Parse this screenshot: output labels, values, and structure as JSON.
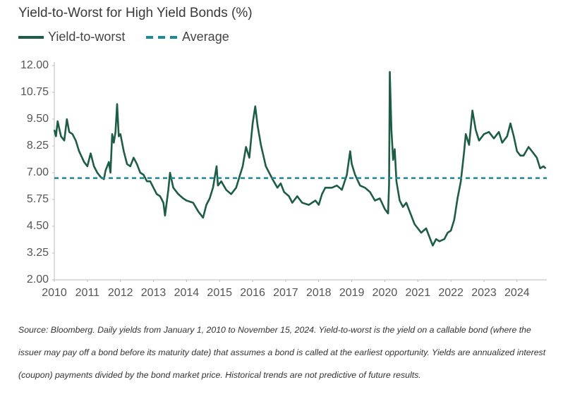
{
  "chart_data": {
    "type": "line",
    "title": "Yield-to-Worst for High Yield Bonds (%)",
    "x": [
      2010.0,
      2010.05,
      2010.1,
      2010.2,
      2010.3,
      2010.38,
      2010.45,
      2010.55,
      2010.65,
      2010.75,
      2010.9,
      2011.0,
      2011.1,
      2011.2,
      2011.3,
      2011.4,
      2011.5,
      2011.55,
      2011.65,
      2011.7,
      2011.75,
      2011.8,
      2011.85,
      2011.9,
      2011.95,
      2012.0,
      2012.1,
      2012.2,
      2012.3,
      2012.4,
      2012.5,
      2012.6,
      2012.7,
      2012.8,
      2012.9,
      2013.0,
      2013.1,
      2013.2,
      2013.3,
      2013.35,
      2013.45,
      2013.5,
      2013.6,
      2013.75,
      2013.9,
      2014.0,
      2014.2,
      2014.35,
      2014.45,
      2014.5,
      2014.6,
      2014.7,
      2014.8,
      2014.91,
      2014.95,
      2015.05,
      2015.2,
      2015.35,
      2015.5,
      2015.6,
      2015.7,
      2015.8,
      2015.9,
      2016.0,
      2016.08,
      2016.15,
      2016.25,
      2016.4,
      2016.5,
      2016.6,
      2016.75,
      2016.85,
      2016.95,
      2017.1,
      2017.2,
      2017.35,
      2017.5,
      2017.7,
      2017.9,
      2018.0,
      2018.1,
      2018.2,
      2018.4,
      2018.55,
      2018.7,
      2018.85,
      2018.95,
      2019.0,
      2019.1,
      2019.25,
      2019.4,
      2019.55,
      2019.7,
      2019.85,
      2020.0,
      2020.1,
      2020.13,
      2020.15,
      2020.2,
      2020.25,
      2020.3,
      2020.35,
      2020.45,
      2020.55,
      2020.65,
      2020.8,
      2020.9,
      2021.0,
      2021.1,
      2021.25,
      2021.35,
      2021.45,
      2021.55,
      2021.65,
      2021.8,
      2021.9,
      2022.0,
      2022.1,
      2022.2,
      2022.3,
      2022.4,
      2022.45,
      2022.55,
      2022.65,
      2022.75,
      2022.85,
      2023.0,
      2023.15,
      2023.3,
      2023.45,
      2023.55,
      2023.7,
      2023.8,
      2023.9,
      2024.0,
      2024.1,
      2024.2,
      2024.35,
      2024.5,
      2024.6,
      2024.7,
      2024.8,
      2024.87
    ],
    "series": [
      {
        "name": "Yield-to-worst",
        "color": "#1d5c45",
        "values": [
          9.0,
          8.7,
          9.4,
          8.7,
          8.5,
          9.5,
          8.9,
          8.8,
          8.5,
          8.0,
          7.5,
          7.3,
          7.9,
          7.3,
          7.0,
          6.8,
          6.7,
          7.1,
          7.5,
          7.0,
          8.8,
          8.4,
          8.9,
          10.2,
          8.7,
          8.8,
          8.0,
          7.4,
          7.3,
          7.7,
          7.4,
          7.0,
          6.9,
          6.6,
          6.6,
          6.3,
          6.0,
          5.9,
          5.6,
          5.0,
          6.2,
          7.0,
          6.3,
          6.0,
          5.8,
          5.7,
          5.6,
          5.2,
          5.0,
          4.9,
          5.5,
          5.8,
          6.3,
          7.3,
          6.4,
          6.6,
          6.2,
          6.0,
          6.3,
          6.8,
          7.3,
          8.2,
          7.7,
          9.3,
          10.1,
          9.2,
          8.3,
          7.3,
          7.0,
          6.7,
          6.3,
          6.5,
          6.1,
          5.9,
          5.6,
          5.9,
          5.6,
          5.5,
          5.7,
          5.5,
          6.0,
          6.3,
          6.3,
          6.4,
          6.2,
          6.9,
          8.0,
          7.4,
          6.9,
          6.4,
          6.3,
          6.1,
          5.7,
          5.8,
          5.3,
          5.1,
          6.5,
          11.7,
          9.0,
          7.6,
          8.1,
          6.6,
          5.7,
          5.4,
          5.6,
          5.0,
          4.6,
          4.4,
          4.2,
          4.4,
          4.0,
          3.6,
          3.9,
          3.8,
          3.9,
          4.2,
          4.3,
          4.8,
          5.8,
          6.6,
          8.0,
          8.8,
          8.3,
          9.9,
          9.0,
          8.5,
          8.8,
          8.9,
          8.6,
          8.9,
          8.4,
          8.7,
          9.3,
          8.7,
          8.0,
          7.8,
          7.8,
          8.2,
          7.9,
          7.7,
          7.2,
          7.3,
          7.2
        ]
      }
    ],
    "average": {
      "name": "Average",
      "color": "#1b8a96",
      "value": 6.75
    },
    "xlim": [
      2010,
      2024.9
    ],
    "xticks": [
      2010,
      2011,
      2012,
      2013,
      2014,
      2015,
      2016,
      2017,
      2018,
      2019,
      2020,
      2021,
      2022,
      2023,
      2024
    ],
    "ylim": [
      2,
      12
    ],
    "yticks": [
      {
        "value": 2,
        "label": "2.00"
      },
      {
        "value": 3.25,
        "label": "3.25"
      },
      {
        "value": 4.5,
        "label": "4.50"
      },
      {
        "value": 5.75,
        "label": "5.75"
      },
      {
        "value": 7,
        "label": "7.00"
      },
      {
        "value": 8.25,
        "label": "8.25"
      },
      {
        "value": 9.5,
        "label": "9.50"
      },
      {
        "value": 10.75,
        "label": "10.75"
      },
      {
        "value": 12,
        "label": "12.00"
      }
    ],
    "source": "Source: Bloomberg. Daily yields from January 1, 2010 to November 15, 2024. Yield-to-worst is the yield on a callable bond (where the issuer may pay off a bond before its maturity date) that assumes a bond is called at the earliest opportunity. Yields are annualized interest (coupon) payments divided by the bond market price. Historical trends are not predictive of future results."
  }
}
